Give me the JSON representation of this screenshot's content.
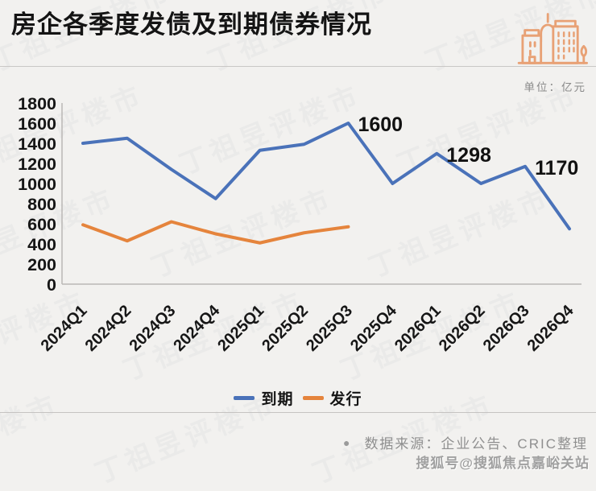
{
  "header": {
    "title": "房企各季度发债及到期债券情况",
    "unit_label": "单位：亿元",
    "icon": "buildings-icon",
    "icon_color": "#e8a175"
  },
  "chart_data": {
    "type": "line",
    "title": "房企各季度发债及到期债券情况",
    "xlabel": "",
    "ylabel": "亿元",
    "ylim": [
      0,
      1800
    ],
    "ytick_step": 200,
    "ytick_labels": [
      "0",
      "200",
      "400",
      "600",
      "800",
      "1000",
      "1200",
      "1400",
      "1600",
      "1800"
    ],
    "grid": false,
    "legend_position": "bottom",
    "categories": [
      "2024Q1",
      "2024Q2",
      "2024Q3",
      "2024Q4",
      "2025Q1",
      "2025Q2",
      "2025Q3",
      "2025Q4",
      "2026Q1",
      "2026Q2",
      "2026Q3",
      "2026Q4"
    ],
    "series": [
      {
        "name": "到期",
        "color": "#4a72b9",
        "values": [
          1400,
          1450,
          1140,
          850,
          1330,
          1390,
          1600,
          1000,
          1298,
          1000,
          1170,
          550
        ]
      },
      {
        "name": "发行",
        "color": "#e5843c",
        "values": [
          590,
          430,
          620,
          500,
          410,
          510,
          570
        ]
      }
    ],
    "point_labels": [
      {
        "series": 0,
        "index": 6,
        "text": "1600"
      },
      {
        "series": 0,
        "index": 8,
        "text": "1298"
      },
      {
        "series": 0,
        "index": 10,
        "text": "1170"
      }
    ]
  },
  "legend": {
    "items": [
      {
        "label": "到期",
        "color": "#4a72b9"
      },
      {
        "label": "发行",
        "color": "#e5843c"
      }
    ]
  },
  "footer": {
    "source_bullet": "●",
    "source_text": "数据来源：企业公告、CRIC整理",
    "sohu_watermark": "搜狐号@搜狐焦点嘉峪关站"
  },
  "background_watermark_text": "丁祖昱评楼市",
  "colors": {
    "background": "#f2f1ef",
    "maturity_line": "#4a72b9",
    "issuance_line": "#e5843c",
    "axis": "#b9b7b5",
    "text_primary": "#141414",
    "text_muted": "#8f8f8f"
  }
}
